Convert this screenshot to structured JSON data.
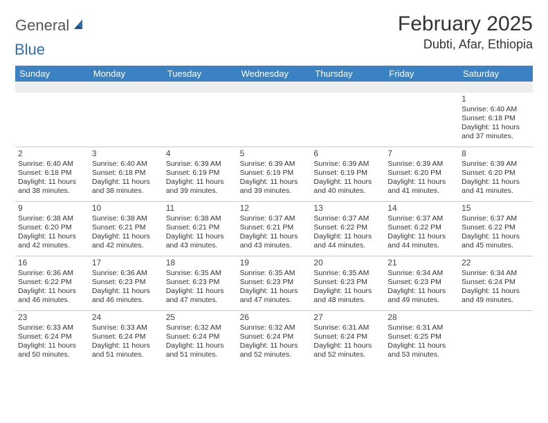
{
  "logo": {
    "part1": "General",
    "part2": "Blue"
  },
  "title": {
    "month": "February 2025",
    "location": "Dubti, Afar, Ethiopia"
  },
  "colors": {
    "header_bg": "#3b82c4",
    "header_text": "#ffffff",
    "stripe": "#eeeeee",
    "border": "#bfcdd9",
    "logo_gray": "#555555",
    "logo_blue": "#2f6fb0",
    "text": "#333333"
  },
  "day_headers": [
    "Sunday",
    "Monday",
    "Tuesday",
    "Wednesday",
    "Thursday",
    "Friday",
    "Saturday"
  ],
  "weeks": [
    [
      null,
      null,
      null,
      null,
      null,
      null,
      {
        "n": "1",
        "sr": "Sunrise: 6:40 AM",
        "ss": "Sunset: 6:18 PM",
        "d1": "Daylight: 11 hours",
        "d2": "and 37 minutes."
      }
    ],
    [
      {
        "n": "2",
        "sr": "Sunrise: 6:40 AM",
        "ss": "Sunset: 6:18 PM",
        "d1": "Daylight: 11 hours",
        "d2": "and 38 minutes."
      },
      {
        "n": "3",
        "sr": "Sunrise: 6:40 AM",
        "ss": "Sunset: 6:18 PM",
        "d1": "Daylight: 11 hours",
        "d2": "and 38 minutes."
      },
      {
        "n": "4",
        "sr": "Sunrise: 6:39 AM",
        "ss": "Sunset: 6:19 PM",
        "d1": "Daylight: 11 hours",
        "d2": "and 39 minutes."
      },
      {
        "n": "5",
        "sr": "Sunrise: 6:39 AM",
        "ss": "Sunset: 6:19 PM",
        "d1": "Daylight: 11 hours",
        "d2": "and 39 minutes."
      },
      {
        "n": "6",
        "sr": "Sunrise: 6:39 AM",
        "ss": "Sunset: 6:19 PM",
        "d1": "Daylight: 11 hours",
        "d2": "and 40 minutes."
      },
      {
        "n": "7",
        "sr": "Sunrise: 6:39 AM",
        "ss": "Sunset: 6:20 PM",
        "d1": "Daylight: 11 hours",
        "d2": "and 41 minutes."
      },
      {
        "n": "8",
        "sr": "Sunrise: 6:39 AM",
        "ss": "Sunset: 6:20 PM",
        "d1": "Daylight: 11 hours",
        "d2": "and 41 minutes."
      }
    ],
    [
      {
        "n": "9",
        "sr": "Sunrise: 6:38 AM",
        "ss": "Sunset: 6:20 PM",
        "d1": "Daylight: 11 hours",
        "d2": "and 42 minutes."
      },
      {
        "n": "10",
        "sr": "Sunrise: 6:38 AM",
        "ss": "Sunset: 6:21 PM",
        "d1": "Daylight: 11 hours",
        "d2": "and 42 minutes."
      },
      {
        "n": "11",
        "sr": "Sunrise: 6:38 AM",
        "ss": "Sunset: 6:21 PM",
        "d1": "Daylight: 11 hours",
        "d2": "and 43 minutes."
      },
      {
        "n": "12",
        "sr": "Sunrise: 6:37 AM",
        "ss": "Sunset: 6:21 PM",
        "d1": "Daylight: 11 hours",
        "d2": "and 43 minutes."
      },
      {
        "n": "13",
        "sr": "Sunrise: 6:37 AM",
        "ss": "Sunset: 6:22 PM",
        "d1": "Daylight: 11 hours",
        "d2": "and 44 minutes."
      },
      {
        "n": "14",
        "sr": "Sunrise: 6:37 AM",
        "ss": "Sunset: 6:22 PM",
        "d1": "Daylight: 11 hours",
        "d2": "and 44 minutes."
      },
      {
        "n": "15",
        "sr": "Sunrise: 6:37 AM",
        "ss": "Sunset: 6:22 PM",
        "d1": "Daylight: 11 hours",
        "d2": "and 45 minutes."
      }
    ],
    [
      {
        "n": "16",
        "sr": "Sunrise: 6:36 AM",
        "ss": "Sunset: 6:22 PM",
        "d1": "Daylight: 11 hours",
        "d2": "and 46 minutes."
      },
      {
        "n": "17",
        "sr": "Sunrise: 6:36 AM",
        "ss": "Sunset: 6:23 PM",
        "d1": "Daylight: 11 hours",
        "d2": "and 46 minutes."
      },
      {
        "n": "18",
        "sr": "Sunrise: 6:35 AM",
        "ss": "Sunset: 6:23 PM",
        "d1": "Daylight: 11 hours",
        "d2": "and 47 minutes."
      },
      {
        "n": "19",
        "sr": "Sunrise: 6:35 AM",
        "ss": "Sunset: 6:23 PM",
        "d1": "Daylight: 11 hours",
        "d2": "and 47 minutes."
      },
      {
        "n": "20",
        "sr": "Sunrise: 6:35 AM",
        "ss": "Sunset: 6:23 PM",
        "d1": "Daylight: 11 hours",
        "d2": "and 48 minutes."
      },
      {
        "n": "21",
        "sr": "Sunrise: 6:34 AM",
        "ss": "Sunset: 6:23 PM",
        "d1": "Daylight: 11 hours",
        "d2": "and 49 minutes."
      },
      {
        "n": "22",
        "sr": "Sunrise: 6:34 AM",
        "ss": "Sunset: 6:24 PM",
        "d1": "Daylight: 11 hours",
        "d2": "and 49 minutes."
      }
    ],
    [
      {
        "n": "23",
        "sr": "Sunrise: 6:33 AM",
        "ss": "Sunset: 6:24 PM",
        "d1": "Daylight: 11 hours",
        "d2": "and 50 minutes."
      },
      {
        "n": "24",
        "sr": "Sunrise: 6:33 AM",
        "ss": "Sunset: 6:24 PM",
        "d1": "Daylight: 11 hours",
        "d2": "and 51 minutes."
      },
      {
        "n": "25",
        "sr": "Sunrise: 6:32 AM",
        "ss": "Sunset: 6:24 PM",
        "d1": "Daylight: 11 hours",
        "d2": "and 51 minutes."
      },
      {
        "n": "26",
        "sr": "Sunrise: 6:32 AM",
        "ss": "Sunset: 6:24 PM",
        "d1": "Daylight: 11 hours",
        "d2": "and 52 minutes."
      },
      {
        "n": "27",
        "sr": "Sunrise: 6:31 AM",
        "ss": "Sunset: 6:24 PM",
        "d1": "Daylight: 11 hours",
        "d2": "and 52 minutes."
      },
      {
        "n": "28",
        "sr": "Sunrise: 6:31 AM",
        "ss": "Sunset: 6:25 PM",
        "d1": "Daylight: 11 hours",
        "d2": "and 53 minutes."
      },
      null
    ]
  ]
}
